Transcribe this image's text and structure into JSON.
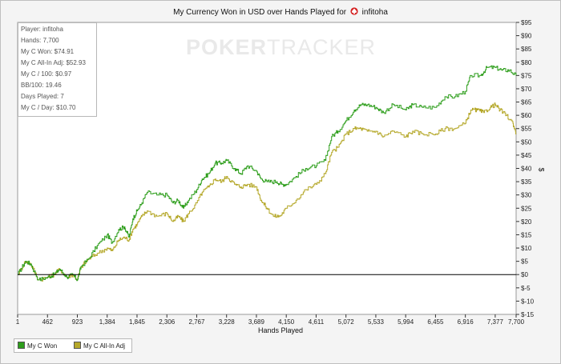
{
  "title": "My Currency Won in USD over Hands Played for",
  "player_name": "infitoha",
  "watermark": {
    "bold": "POKER",
    "thin": "TRACKER"
  },
  "stats": [
    "Player: infitoha",
    "Hands: 7,700",
    "My C Won: $74.91",
    "My C All-In Adj: $52.93",
    "My C / 100: $0.97",
    "BB/100: 19.46",
    "Days Played: 7",
    "My C / Day: $10.70"
  ],
  "colors": {
    "won": "#2e9e1c",
    "allin": "#b5a82a",
    "zero": "#000000",
    "plot_bg": "#ffffff"
  },
  "chart_data": {
    "type": "line",
    "xlabel": "Hands Played",
    "ylabel": "$",
    "x_ticks": [
      1,
      462,
      923,
      1384,
      1845,
      2306,
      2767,
      3228,
      3689,
      4150,
      4611,
      5072,
      5533,
      5994,
      6455,
      6916,
      7377,
      7700
    ],
    "x_tick_labels": [
      "1",
      "462",
      "923",
      "1,384",
      "1,845",
      "2,306",
      "2,767",
      "3,228",
      "3,689",
      "4,150",
      "4,611",
      "5,072",
      "5,533",
      "5,994",
      "6,455",
      "6,916",
      "7,377",
      "7,700"
    ],
    "y_ticks": [
      -15,
      -10,
      -5,
      0,
      5,
      10,
      15,
      20,
      25,
      30,
      35,
      40,
      45,
      50,
      55,
      60,
      65,
      70,
      75,
      80,
      85,
      90,
      95
    ],
    "y_tick_labels": [
      "$-15",
      "$-10",
      "$-5",
      "$0",
      "$5",
      "$10",
      "$15",
      "$20",
      "$25",
      "$30",
      "$35",
      "$40",
      "$45",
      "$50",
      "$55",
      "$60",
      "$65",
      "$70",
      "$75",
      "$80",
      "$85",
      "$90",
      "$95"
    ],
    "xlim": [
      1,
      7700
    ],
    "ylim": [
      -15,
      95
    ],
    "legend_position": "bottom-left",
    "series": [
      {
        "name": "My C Won",
        "color": "#2e9e1c",
        "points": [
          [
            1,
            0
          ],
          [
            120,
            5
          ],
          [
            200,
            4
          ],
          [
            320,
            -2
          ],
          [
            462,
            -1
          ],
          [
            560,
            0
          ],
          [
            650,
            2
          ],
          [
            760,
            -1
          ],
          [
            850,
            0
          ],
          [
            923,
            -2
          ],
          [
            980,
            3
          ],
          [
            1100,
            6
          ],
          [
            1230,
            11
          ],
          [
            1384,
            15
          ],
          [
            1460,
            12
          ],
          [
            1560,
            17
          ],
          [
            1650,
            18
          ],
          [
            1720,
            14
          ],
          [
            1780,
            21
          ],
          [
            1845,
            24
          ],
          [
            1920,
            27
          ],
          [
            2000,
            31
          ],
          [
            2150,
            30
          ],
          [
            2306,
            30
          ],
          [
            2400,
            27
          ],
          [
            2480,
            28
          ],
          [
            2560,
            25
          ],
          [
            2640,
            28
          ],
          [
            2767,
            32
          ],
          [
            2850,
            36
          ],
          [
            2950,
            38
          ],
          [
            3050,
            42
          ],
          [
            3150,
            42
          ],
          [
            3228,
            43
          ],
          [
            3350,
            40
          ],
          [
            3450,
            38
          ],
          [
            3550,
            41
          ],
          [
            3689,
            39
          ],
          [
            3760,
            36
          ],
          [
            3850,
            35
          ],
          [
            4000,
            35
          ],
          [
            4080,
            34
          ],
          [
            4150,
            34
          ],
          [
            4300,
            37
          ],
          [
            4450,
            40
          ],
          [
            4611,
            41
          ],
          [
            4750,
            43
          ],
          [
            4850,
            52
          ],
          [
            4950,
            54
          ],
          [
            5072,
            58
          ],
          [
            5200,
            62
          ],
          [
            5300,
            64
          ],
          [
            5400,
            64
          ],
          [
            5533,
            63
          ],
          [
            5650,
            61
          ],
          [
            5800,
            64
          ],
          [
            5994,
            62
          ],
          [
            6100,
            64
          ],
          [
            6250,
            63
          ],
          [
            6455,
            63
          ],
          [
            6600,
            67
          ],
          [
            6750,
            67
          ],
          [
            6916,
            69
          ],
          [
            7000,
            75
          ],
          [
            7150,
            75
          ],
          [
            7250,
            78
          ],
          [
            7377,
            78
          ],
          [
            7480,
            77
          ],
          [
            7600,
            77
          ],
          [
            7700,
            74.91
          ]
        ]
      },
      {
        "name": "My C All-In Adj",
        "color": "#b5a82a",
        "points": [
          [
            1,
            0
          ],
          [
            120,
            5
          ],
          [
            200,
            4
          ],
          [
            320,
            -2
          ],
          [
            462,
            -1
          ],
          [
            560,
            0
          ],
          [
            650,
            2
          ],
          [
            760,
            -1
          ],
          [
            850,
            0
          ],
          [
            923,
            -2
          ],
          [
            980,
            3
          ],
          [
            1100,
            6
          ],
          [
            1230,
            8
          ],
          [
            1384,
            10
          ],
          [
            1460,
            9
          ],
          [
            1560,
            13
          ],
          [
            1650,
            14
          ],
          [
            1720,
            13
          ],
          [
            1780,
            17
          ],
          [
            1845,
            19
          ],
          [
            1920,
            22
          ],
          [
            2000,
            24
          ],
          [
            2150,
            22
          ],
          [
            2306,
            23
          ],
          [
            2400,
            20
          ],
          [
            2480,
            22
          ],
          [
            2560,
            20
          ],
          [
            2640,
            23
          ],
          [
            2767,
            27
          ],
          [
            2850,
            31
          ],
          [
            2950,
            33
          ],
          [
            3050,
            36
          ],
          [
            3150,
            35
          ],
          [
            3228,
            37
          ],
          [
            3350,
            34
          ],
          [
            3450,
            33
          ],
          [
            3550,
            34
          ],
          [
            3689,
            33
          ],
          [
            3760,
            28
          ],
          [
            3850,
            25
          ],
          [
            3950,
            22
          ],
          [
            4050,
            22
          ],
          [
            4150,
            25
          ],
          [
            4300,
            28
          ],
          [
            4450,
            32
          ],
          [
            4611,
            34
          ],
          [
            4750,
            38
          ],
          [
            4850,
            46
          ],
          [
            4950,
            48
          ],
          [
            5072,
            53
          ],
          [
            5200,
            55
          ],
          [
            5300,
            55
          ],
          [
            5400,
            54
          ],
          [
            5533,
            54
          ],
          [
            5650,
            52
          ],
          [
            5800,
            54
          ],
          [
            5994,
            52
          ],
          [
            6100,
            54
          ],
          [
            6250,
            53
          ],
          [
            6455,
            53
          ],
          [
            6600,
            55
          ],
          [
            6750,
            55
          ],
          [
            6916,
            57
          ],
          [
            7000,
            62
          ],
          [
            7100,
            62
          ],
          [
            7200,
            61
          ],
          [
            7300,
            63
          ],
          [
            7377,
            64
          ],
          [
            7450,
            62
          ],
          [
            7550,
            60
          ],
          [
            7650,
            57
          ],
          [
            7700,
            52.93
          ]
        ]
      }
    ]
  }
}
